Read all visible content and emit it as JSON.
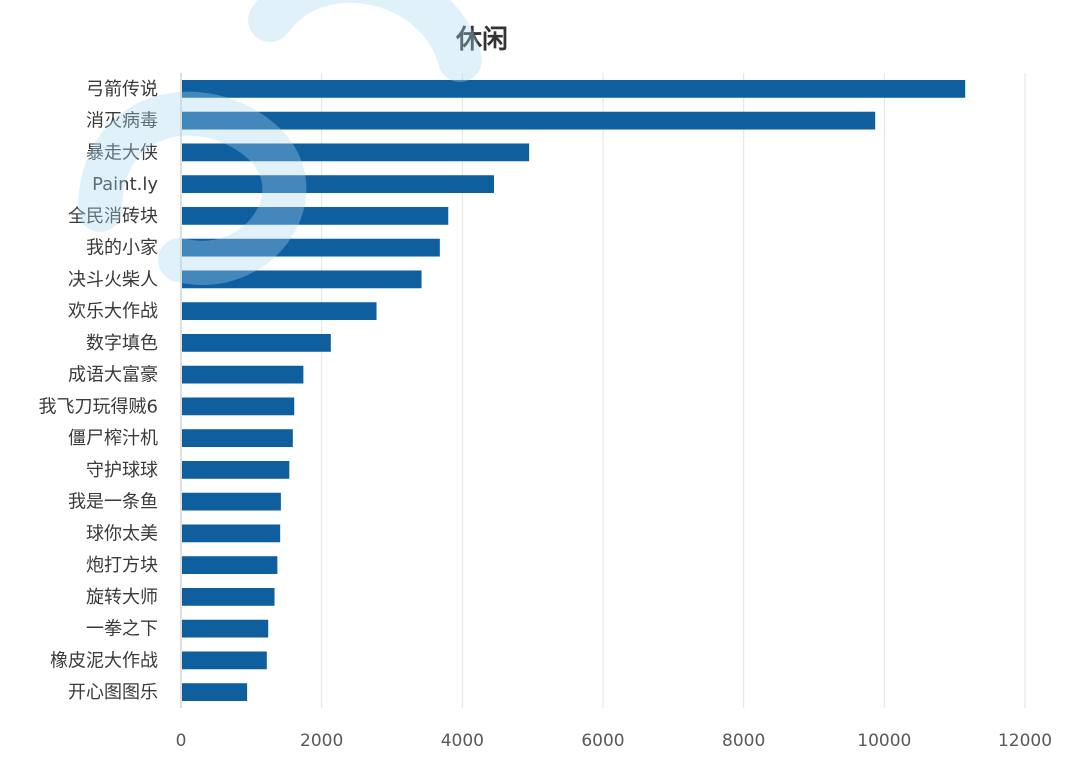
{
  "chart_data": {
    "type": "bar",
    "orientation": "horizontal",
    "title": "休闲",
    "xlabel": "",
    "ylabel": "",
    "categories": [
      "弓箭传说",
      "消灭病毒",
      "暴走大侠",
      "Paint.ly",
      "全民消砖块",
      "我的小家",
      "决斗火柴人",
      "欢乐大作战",
      "数字填色",
      "成语大富豪",
      "我飞刀玩得贼6",
      "僵尸榨汁机",
      "守护球球",
      "我是一条鱼",
      "球你太美",
      "炮打方块",
      "旋转大师",
      "一拳之下",
      "橡皮泥大作战",
      "开心图图乐"
    ],
    "values": [
      11150,
      9870,
      4950,
      4450,
      3800,
      3680,
      3420,
      2780,
      2130,
      1740,
      1610,
      1590,
      1540,
      1420,
      1410,
      1370,
      1330,
      1240,
      1220,
      940
    ],
    "xlim": [
      0,
      12000
    ],
    "xticks": [
      0,
      2000,
      4000,
      6000,
      8000,
      10000,
      12000
    ],
    "grid": true,
    "legend": "none",
    "bar_color": "#0f5f9f"
  }
}
